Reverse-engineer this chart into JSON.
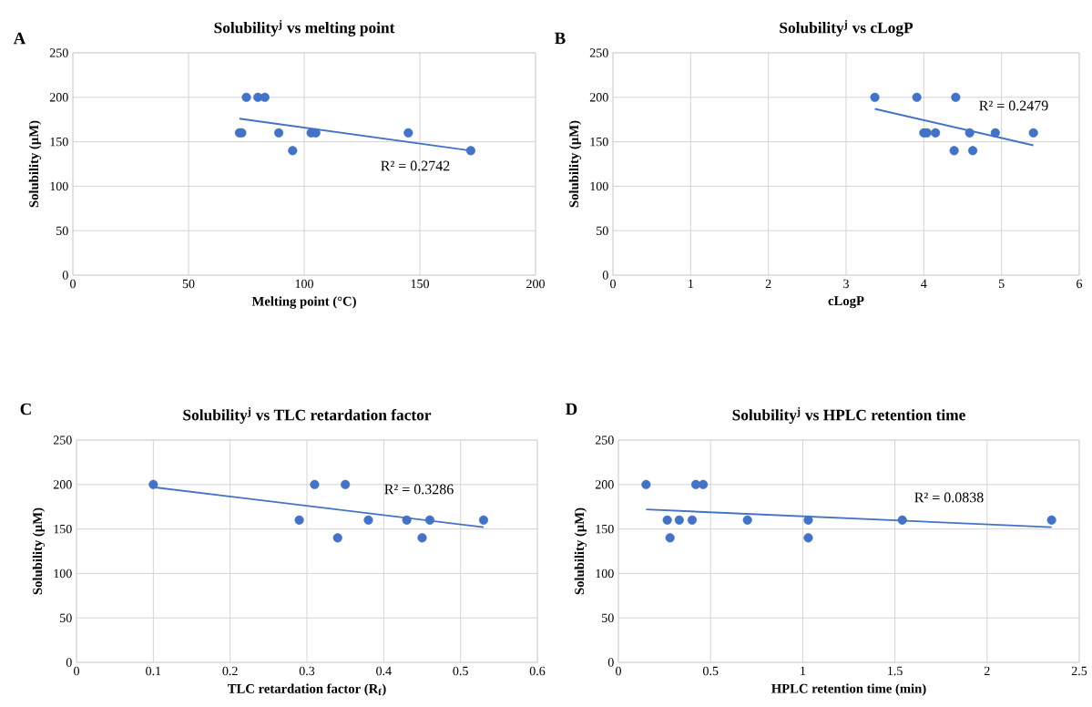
{
  "chart_data": [
    {
      "type": "scatter",
      "title": "Solubility$^{j}$ vs melting point",
      "xlabel": "Melting point (°C)",
      "ylabel": "Solubility  (µM)",
      "xlim": [
        0,
        200
      ],
      "xticks": [
        0,
        50,
        100,
        150,
        200
      ],
      "ylim": [
        0,
        250
      ],
      "yticks": [
        0,
        50,
        100,
        150,
        200,
        250
      ],
      "grid": true,
      "marker": "circle",
      "annotations": [
        "A",
        "R² = 0.2742"
      ],
      "series": [
        {
          "color": "#4472c4",
          "x": [
            72,
            73,
            75,
            80,
            83,
            89,
            95,
            103,
            105,
            145,
            172
          ],
          "values": [
            160,
            160,
            200,
            200,
            200,
            160,
            140,
            160,
            160,
            160,
            140
          ]
        },
        {
          "type": "line",
          "marker": "none",
          "color": "#4472c4",
          "x": [
            72,
            172
          ],
          "values": [
            176,
            140
          ]
        }
      ]
    },
    {
      "type": "scatter",
      "title": "Solubility$^{j}$ vs cLogP",
      "xlabel": "cLogP",
      "ylabel": "Solubility  (µM)",
      "xlim": [
        0,
        6
      ],
      "xticks": [
        0,
        1,
        2,
        3,
        4,
        5,
        6
      ],
      "ylim": [
        0,
        250
      ],
      "yticks": [
        0,
        50,
        100,
        150,
        200,
        250
      ],
      "grid": true,
      "marker": "circle",
      "annotations": [
        "B",
        "R² = 0.2479"
      ],
      "series": [
        {
          "color": "#4472c4",
          "x": [
            3.37,
            3.91,
            4.41,
            4.0,
            4.04,
            4.15,
            4.59,
            4.92,
            5.41,
            4.39,
            4.63
          ],
          "values": [
            200,
            200,
            200,
            160,
            160,
            160,
            160,
            160,
            160,
            140,
            140
          ]
        },
        {
          "type": "line",
          "marker": "none",
          "color": "#4472c4",
          "x": [
            3.37,
            5.41
          ],
          "values": [
            187,
            146
          ]
        }
      ]
    },
    {
      "type": "scatter",
      "title": "Solubility$^{j}$ vs TLC retardation factor",
      "xlabel": "TLC retardation factor (R$_{f}$)",
      "ylabel": "Solubility  (µM)",
      "xlim": [
        0,
        0.6
      ],
      "xticks": [
        0,
        0.1,
        0.2,
        0.3,
        0.4,
        0.5,
        0.6
      ],
      "ylim": [
        0,
        250
      ],
      "yticks": [
        0,
        50,
        100,
        150,
        200,
        250
      ],
      "grid": true,
      "marker": "circle",
      "annotations": [
        "C",
        "R² = 0.3286"
      ],
      "series": [
        {
          "color": "#4472c4",
          "x": [
            0.1,
            0.31,
            0.35,
            0.29,
            0.34,
            0.38,
            0.43,
            0.45,
            0.46,
            0.53
          ],
          "values": [
            200,
            200,
            200,
            160,
            140,
            160,
            160,
            140,
            160,
            160
          ]
        },
        {
          "type": "line",
          "marker": "none",
          "color": "#4472c4",
          "x": [
            0.1,
            0.53
          ],
          "values": [
            197,
            152
          ]
        }
      ]
    },
    {
      "type": "scatter",
      "title": "Solubility$^{j}$ vs HPLC retention time",
      "xlabel": "HPLC retention time (min)",
      "ylabel": "Solubility  (µM)",
      "xlim": [
        0,
        2.5
      ],
      "xticks": [
        0,
        0.5,
        1,
        1.5,
        2,
        2.5
      ],
      "ylim": [
        0,
        250
      ],
      "yticks": [
        0,
        50,
        100,
        150,
        200,
        250
      ],
      "grid": true,
      "marker": "circle",
      "annotations": [
        "D",
        "R² = 0.0838"
      ],
      "series": [
        {
          "color": "#4472c4",
          "x": [
            0.15,
            0.265,
            0.28,
            0.33,
            0.4,
            0.42,
            0.46,
            0.7,
            1.03,
            1.03,
            1.54,
            2.35
          ],
          "values": [
            200,
            160,
            140,
            160,
            160,
            200,
            200,
            160,
            160,
            140,
            160,
            160
          ]
        },
        {
          "type": "line",
          "marker": "none",
          "color": "#4472c4",
          "x": [
            0.15,
            2.35
          ],
          "values": [
            172,
            152
          ]
        }
      ]
    }
  ]
}
